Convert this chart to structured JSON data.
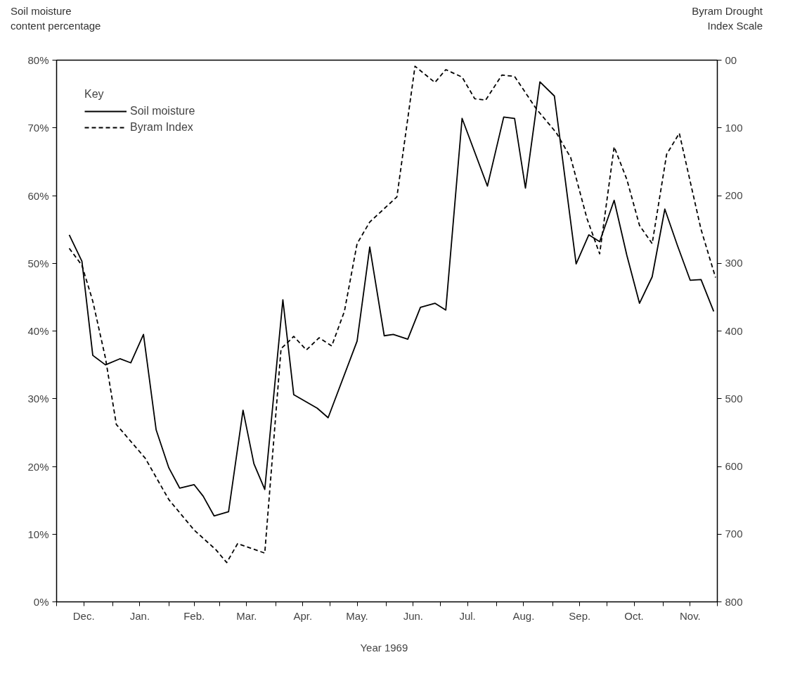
{
  "chart_data": {
    "type": "line",
    "xlabel": "Year   1969",
    "ylabel": "Soil moisture\ncontent percentage",
    "y2label": "Byram Drought\nIndex Scale",
    "legend_title": "Key",
    "legend": "top left",
    "grid": false,
    "marker": "none",
    "xlim": [
      "1968-12-01",
      "1969-12-01"
    ],
    "xticks": [
      {
        "value": "1968-12-01",
        "label": null
      },
      {
        "value": "1968-12-16",
        "label": "Dec."
      },
      {
        "value": "1969-01-01",
        "label": null
      },
      {
        "value": "1969-01-16",
        "label": "Jan."
      },
      {
        "value": "1969-02-01",
        "label": null
      },
      {
        "value": "1969-02-15",
        "label": "Feb."
      },
      {
        "value": "1969-03-01",
        "label": null
      },
      {
        "value": "1969-03-16",
        "label": "Mar."
      },
      {
        "value": "1969-04-01",
        "label": null
      },
      {
        "value": "1969-04-16",
        "label": "Apr."
      },
      {
        "value": "1969-05-01",
        "label": null
      },
      {
        "value": "1969-05-16",
        "label": "May."
      },
      {
        "value": "1969-06-01",
        "label": null
      },
      {
        "value": "1969-06-16",
        "label": "Jun."
      },
      {
        "value": "1969-07-01",
        "label": null
      },
      {
        "value": "1969-07-16",
        "label": "Jul."
      },
      {
        "value": "1969-08-01",
        "label": null
      },
      {
        "value": "1969-08-16",
        "label": "Aug."
      },
      {
        "value": "1969-09-01",
        "label": null
      },
      {
        "value": "1969-09-16",
        "label": "Sep."
      },
      {
        "value": "1969-10-01",
        "label": null
      },
      {
        "value": "1969-10-16",
        "label": "Oct."
      },
      {
        "value": "1969-11-01",
        "label": null
      },
      {
        "value": "1969-11-16",
        "label": "Nov."
      },
      {
        "value": "1969-12-01",
        "label": null
      }
    ],
    "ylim": [
      0,
      80
    ],
    "yticks": [
      {
        "value": 0,
        "label": "0%"
      },
      {
        "value": 10,
        "label": "10%"
      },
      {
        "value": 20,
        "label": "20%"
      },
      {
        "value": 30,
        "label": "30%"
      },
      {
        "value": 40,
        "label": "40%"
      },
      {
        "value": 50,
        "label": "50%"
      },
      {
        "value": 60,
        "label": "60%"
      },
      {
        "value": 70,
        "label": "70%"
      },
      {
        "value": 80,
        "label": "80%"
      }
    ],
    "y2lim": [
      800,
      0
    ],
    "y2ticks": [
      {
        "value": 0,
        "label": "00"
      },
      100,
      200,
      300,
      400,
      500,
      600,
      700,
      800
    ],
    "series": [
      {
        "name": "Soil moisture",
        "color": "#000000",
        "line_style": "solid",
        "x": [
          "1968-12-08",
          "1968-12-15",
          "1968-12-21",
          "1968-12-28",
          "1969-01-05",
          "1969-01-11",
          "1969-01-18",
          "1969-01-25",
          "1969-02-01",
          "1969-02-07",
          "1969-02-15",
          "1969-02-20",
          "1969-02-26",
          "1969-03-06",
          "1969-03-14",
          "1969-03-20",
          "1969-03-26",
          "1969-04-05",
          "1969-04-11",
          "1969-04-24",
          "1969-04-30",
          "1969-05-16",
          "1969-05-23",
          "1969-05-31",
          "1969-06-05",
          "1969-06-13",
          "1969-06-20",
          "1969-06-28",
          "1969-07-04",
          "1969-07-13",
          "1969-07-27",
          "1969-08-05",
          "1969-08-11",
          "1969-08-17",
          "1969-08-25",
          "1969-09-02",
          "1969-09-14",
          "1969-09-21",
          "1969-09-27",
          "1969-10-05",
          "1969-10-12",
          "1969-10-19",
          "1969-10-26",
          "1969-11-02",
          "1969-11-09",
          "1969-11-16",
          "1969-11-22",
          "1969-11-29"
        ],
        "values": [
          54.2,
          50.3,
          36.4,
          35.0,
          35.9,
          35.3,
          39.5,
          25.4,
          19.8,
          16.8,
          17.3,
          15.6,
          12.7,
          13.3,
          28.3,
          20.4,
          16.6,
          44.6,
          30.6,
          28.6,
          27.2,
          38.5,
          52.4,
          39.3,
          39.5,
          38.8,
          43.5,
          44.1,
          43.1,
          71.4,
          61.4,
          71.6,
          71.4,
          61.1,
          76.8,
          74.7,
          49.9,
          54.2,
          53.2,
          59.3,
          51.2,
          44.1,
          48.0,
          58.0,
          52.6,
          47.5,
          47.6,
          42.9
        ]
      },
      {
        "name": "Byram Index",
        "color": "#000000",
        "line_style": "dashed",
        "axis": "y2",
        "x": [
          "1968-12-08",
          "1968-12-15",
          "1968-12-21",
          "1968-12-28",
          "1969-01-03",
          "1969-01-19",
          "1969-02-01",
          "1969-02-15",
          "1969-02-27",
          "1969-03-05",
          "1969-03-11",
          "1969-03-26",
          "1969-04-04",
          "1969-04-08",
          "1969-04-11",
          "1969-04-18",
          "1969-04-25",
          "1969-05-02",
          "1969-05-09",
          "1969-05-16",
          "1969-05-23",
          "1969-06-07",
          "1969-06-17",
          "1969-06-28",
          "1969-07-04",
          "1969-07-13",
          "1969-07-20",
          "1969-07-26",
          "1969-08-04",
          "1969-08-11",
          "1969-08-23",
          "1969-09-03",
          "1969-09-11",
          "1969-09-20",
          "1969-09-27",
          "1969-10-05",
          "1969-10-12",
          "1969-10-19",
          "1969-10-26",
          "1969-11-03",
          "1969-11-10",
          "1969-11-22",
          "1969-11-30"
        ],
        "values": [
          278,
          303,
          356,
          440,
          538,
          588,
          649,
          694,
          723,
          742,
          714,
          728,
          426,
          416,
          408,
          428,
          410,
          422,
          371,
          271,
          239,
          202,
          9,
          33,
          14,
          25,
          57,
          59,
          22,
          24,
          72,
          107,
          144,
          234,
          286,
          128,
          176,
          244,
          271,
          139,
          108,
          250,
          321
        ]
      }
    ]
  }
}
